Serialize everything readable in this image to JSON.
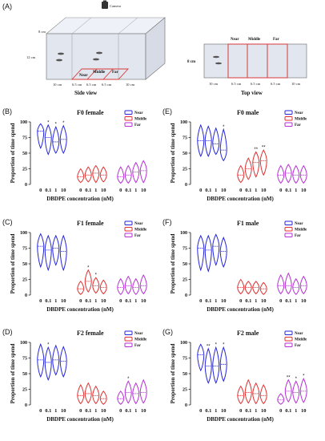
{
  "figure": {
    "panel_a": {
      "label": "(A)",
      "camera_label": "Camera",
      "side_view": {
        "title": "Side view",
        "height_top": "8 cm",
        "height_left": "12 cm",
        "zone_labels": [
          "Near",
          "Middle",
          "Far"
        ],
        "widths": [
          "10 cm",
          "6.5 cm",
          "6.5 cm",
          "6.5 cm",
          "10 cm"
        ]
      },
      "top_view": {
        "title": "Top view",
        "height_left": "8 cm",
        "zone_labels": [
          "Near",
          "Middle",
          "Far"
        ],
        "widths": [
          "10 cm",
          "6.5 cm",
          "6.5 cm",
          "6.5 cm",
          "10 cm"
        ]
      }
    },
    "colors": {
      "Near": "#2626d9",
      "Middle": "#e03030",
      "Far": "#b62fd6"
    }
  },
  "chart_data": [
    {
      "type": "violin",
      "panel": "(B)",
      "title": "F0 female",
      "xlabel": "DBDPE concentration (nM)",
      "ylabel": "Proportion of time spend",
      "ylim": [
        0,
        100
      ],
      "yticks": [
        0,
        25,
        50,
        75,
        100
      ],
      "grid": false,
      "legend": "top-right",
      "categories": [
        "0",
        "0.1",
        "1",
        "10"
      ],
      "series": [
        {
          "name": "Near",
          "values": [
            85,
            75,
            68,
            72
          ],
          "range": [
            [
              58,
              97
            ],
            [
              48,
              95
            ],
            [
              50,
              92
            ],
            [
              50,
              94
            ]
          ],
          "stars": [
            "",
            "*",
            "*",
            "*"
          ]
        },
        {
          "name": "Middle",
          "values": [
            12,
            15,
            18,
            15
          ],
          "range": [
            [
              3,
              25
            ],
            [
              4,
              28
            ],
            [
              3,
              30
            ],
            [
              4,
              28
            ]
          ],
          "stars": [
            "",
            "",
            "",
            ""
          ]
        },
        {
          "name": "Far",
          "values": [
            12,
            15,
            20,
            22
          ],
          "range": [
            [
              2,
              28
            ],
            [
              2,
              30
            ],
            [
              3,
              35
            ],
            [
              3,
              38
            ]
          ],
          "stars": [
            "",
            "",
            "",
            ""
          ]
        }
      ]
    },
    {
      "type": "violin",
      "panel": "(E)",
      "title": "F0 male",
      "xlabel": "DBDPE concentration (nM)",
      "ylabel": "Proportion of time spend",
      "ylim": [
        0,
        100
      ],
      "yticks": [
        0,
        25,
        50,
        75,
        100
      ],
      "grid": false,
      "legend": "top-right",
      "categories": [
        "0",
        "0.1",
        "1",
        "10"
      ],
      "series": [
        {
          "name": "Near",
          "values": [
            70,
            70,
            65,
            55
          ],
          "range": [
            [
              45,
              95
            ],
            [
              45,
              93
            ],
            [
              48,
              90
            ],
            [
              38,
              88
            ]
          ],
          "stars": [
            "",
            "",
            "",
            "*"
          ]
        },
        {
          "name": "Middle",
          "values": [
            15,
            25,
            35,
            38
          ],
          "range": [
            [
              3,
              30
            ],
            [
              8,
              42
            ],
            [
              12,
              52
            ],
            [
              15,
              55
            ]
          ],
          "stars": [
            "",
            "",
            "**",
            "**"
          ]
        },
        {
          "name": "Far",
          "values": [
            15,
            18,
            15,
            15
          ],
          "range": [
            [
              2,
              30
            ],
            [
              3,
              32
            ],
            [
              2,
              30
            ],
            [
              2,
              30
            ]
          ],
          "stars": [
            "",
            "",
            "",
            ""
          ]
        }
      ]
    },
    {
      "type": "violin",
      "panel": "(C)",
      "title": "F1 female",
      "xlabel": "DBDPE concentration (nM)",
      "ylabel": "Proportion of time spend",
      "ylim": [
        0,
        100
      ],
      "yticks": [
        0,
        25,
        50,
        75,
        100
      ],
      "grid": false,
      "legend": "top-right",
      "categories": [
        "0",
        "0.1",
        "1",
        "10"
      ],
      "series": [
        {
          "name": "Near",
          "values": [
            78,
            72,
            75,
            70
          ],
          "range": [
            [
              45,
              98
            ],
            [
              40,
              95
            ],
            [
              48,
              95
            ],
            [
              40,
              95
            ]
          ],
          "stars": [
            "",
            "",
            "",
            ""
          ]
        },
        {
          "name": "Middle",
          "values": [
            10,
            22,
            15,
            12
          ],
          "range": [
            [
              1,
              22
            ],
            [
              5,
              40
            ],
            [
              3,
              28
            ],
            [
              2,
              24
            ]
          ],
          "stars": [
            "",
            "*",
            "*",
            ""
          ]
        },
        {
          "name": "Far",
          "values": [
            12,
            15,
            12,
            15
          ],
          "range": [
            [
              1,
              26
            ],
            [
              2,
              30
            ],
            [
              1,
              26
            ],
            [
              2,
              32
            ]
          ],
          "stars": [
            "",
            "",
            "",
            ""
          ]
        }
      ]
    },
    {
      "type": "violin",
      "panel": "(F)",
      "title": "F1 male",
      "xlabel": "DBDPE concentration (nM)",
      "ylabel": "Proportion of time spend",
      "ylim": [
        0,
        100
      ],
      "yticks": [
        0,
        25,
        50,
        75,
        100
      ],
      "grid": false,
      "legend": "top-right",
      "categories": [
        "0",
        "0.1",
        "1",
        "10"
      ],
      "series": [
        {
          "name": "Near",
          "values": [
            75,
            72,
            78,
            70
          ],
          "range": [
            [
              40,
              95
            ],
            [
              38,
              95
            ],
            [
              48,
              97
            ],
            [
              45,
              92
            ]
          ],
          "stars": [
            "",
            "",
            "",
            ""
          ]
        },
        {
          "name": "Middle",
          "values": [
            12,
            12,
            12,
            10
          ],
          "range": [
            [
              2,
              25
            ],
            [
              2,
              22
            ],
            [
              2,
              22
            ],
            [
              1,
              20
            ]
          ],
          "stars": [
            "",
            "",
            "",
            ""
          ]
        },
        {
          "name": "Far",
          "values": [
            15,
            15,
            12,
            15
          ],
          "range": [
            [
              2,
              32
            ],
            [
              2,
              35
            ],
            [
              1,
              26
            ],
            [
              2,
              30
            ]
          ],
          "stars": [
            "",
            "",
            "",
            ""
          ]
        }
      ]
    },
    {
      "type": "violin",
      "panel": "(D)",
      "title": "F2 female",
      "xlabel": "DBDPE concentration (nM)",
      "ylabel": "Proportion of time spend",
      "ylim": [
        0,
        100
      ],
      "yticks": [
        0,
        25,
        50,
        75,
        100
      ],
      "grid": false,
      "legend": "top-right",
      "categories": [
        "0",
        "0.1",
        "1",
        "10"
      ],
      "series": [
        {
          "name": "Near",
          "values": [
            72,
            68,
            72,
            70
          ],
          "range": [
            [
              45,
              97
            ],
            [
              40,
              92
            ],
            [
              48,
              95
            ],
            [
              45,
              93
            ]
          ],
          "stars": [
            "",
            "*",
            "",
            ""
          ]
        },
        {
          "name": "Middle",
          "values": [
            15,
            18,
            15,
            10
          ],
          "range": [
            [
              2,
              32
            ],
            [
              3,
              35
            ],
            [
              2,
              30
            ],
            [
              1,
              22
            ]
          ],
          "stars": [
            "",
            "",
            "",
            ""
          ]
        },
        {
          "name": "Far",
          "values": [
            10,
            20,
            18,
            20
          ],
          "range": [
            [
              1,
              22
            ],
            [
              3,
              38
            ],
            [
              2,
              35
            ],
            [
              3,
              40
            ]
          ],
          "stars": [
            "",
            "*",
            "",
            ""
          ]
        }
      ]
    },
    {
      "type": "violin",
      "panel": "(G)",
      "title": "F2 male",
      "xlabel": "DBDPE concentration (nM)",
      "ylabel": "Proportion of time spend",
      "ylim": [
        0,
        100
      ],
      "yticks": [
        0,
        25,
        50,
        75,
        100
      ],
      "grid": false,
      "legend": "top-right",
      "categories": [
        "0",
        "0.1",
        "1",
        "10"
      ],
      "series": [
        {
          "name": "Near",
          "values": [
            80,
            62,
            62,
            65
          ],
          "range": [
            [
              55,
              97
            ],
            [
              35,
              90
            ],
            [
              35,
              92
            ],
            [
              38,
              92
            ]
          ],
          "stars": [
            "",
            "**",
            "*",
            "*"
          ]
        },
        {
          "name": "Middle",
          "values": [
            15,
            20,
            18,
            15
          ],
          "range": [
            [
              2,
              30
            ],
            [
              3,
              40
            ],
            [
              2,
              35
            ],
            [
              2,
              32
            ]
          ],
          "stars": [
            "",
            "",
            "",
            ""
          ]
        },
        {
          "name": "Far",
          "values": [
            8,
            22,
            20,
            22
          ],
          "range": [
            [
              1,
              18
            ],
            [
              5,
              40
            ],
            [
              3,
              38
            ],
            [
              4,
              42
            ]
          ],
          "stars": [
            "",
            "**",
            "*",
            "*"
          ]
        }
      ]
    }
  ]
}
